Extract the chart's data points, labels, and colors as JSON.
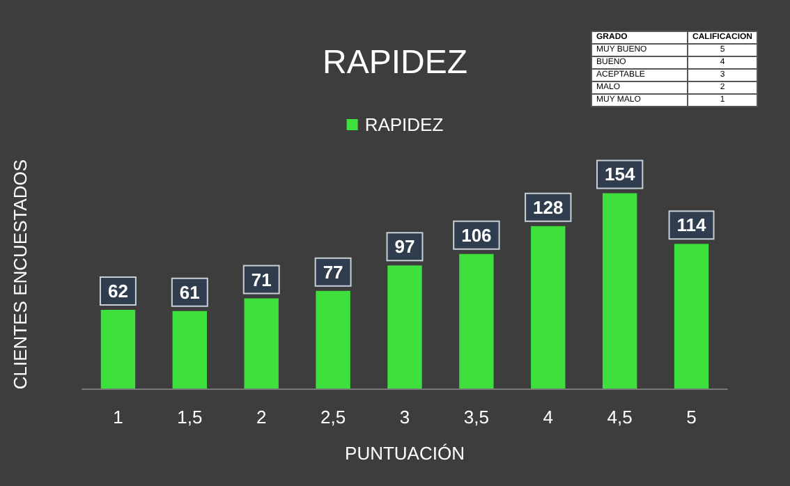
{
  "chart_data": {
    "type": "bar",
    "title": "RAPIDEZ",
    "xlabel": "PUNTUACIÓN",
    "ylabel": "CLIENTES ENCUESTADOS",
    "categories": [
      "1",
      "1,5",
      "2",
      "2,5",
      "3",
      "3,5",
      "4",
      "4,5",
      "5"
    ],
    "series": [
      {
        "name": "RAPIDEZ",
        "color": "#3ee03e",
        "values": [
          62,
          61,
          71,
          77,
          97,
          106,
          128,
          154,
          114
        ]
      }
    ],
    "data_labels": true,
    "legend": "top",
    "grid": false,
    "annotations": [
      "GRADO",
      "CALIFICACION",
      "MUY BUENO",
      "5",
      "BUENO",
      "4",
      "ACEPTABLE",
      "3",
      "MALO",
      "2",
      "MUY MALO",
      "1"
    ]
  }
}
